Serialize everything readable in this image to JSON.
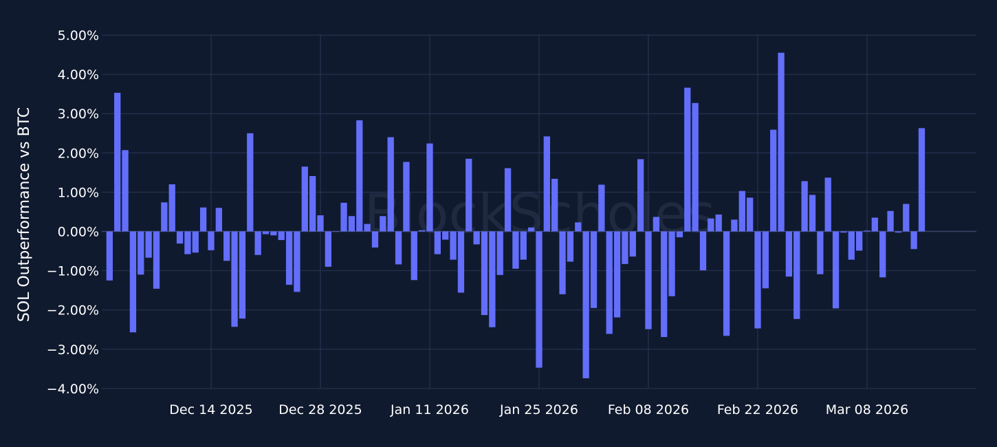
{
  "watermark": "BlockScholes",
  "chart_data": {
    "type": "bar",
    "ylabel": "SOL Outperformance vs BTC",
    "xlabel": "",
    "ylim": [
      -4.5,
      5.0
    ],
    "y_ticks": [
      -4,
      -3,
      -2,
      -1,
      0,
      1,
      2,
      3,
      4,
      5
    ],
    "y_tick_labels": [
      "−4.00%",
      "−3.00%",
      "−2.00%",
      "−1.00%",
      "0.00%",
      "1.00%",
      "2.00%",
      "3.00%",
      "4.00%",
      "5.00%"
    ],
    "x_ticks": [
      "2025-12-14",
      "2025-12-28",
      "2026-01-11",
      "2026-01-25",
      "2026-02-08",
      "2026-02-22",
      "2026-03-08"
    ],
    "x_tick_labels": [
      "Dec 14 2025",
      "Dec 28 2025",
      "Jan 11 2026",
      "Jan 25 2026",
      "Feb 08 2026",
      "Feb 22 2026",
      "Mar 08 2026"
    ],
    "x_start": "2025-12-01",
    "x_range": [
      "2025-11-30",
      "2026-03-22"
    ],
    "grid": true,
    "color": "#636efa",
    "values": [
      -1.25,
      3.53,
      2.07,
      -2.57,
      -1.1,
      -0.67,
      -1.46,
      0.74,
      1.2,
      -0.31,
      -0.58,
      -0.54,
      0.61,
      -0.48,
      0.6,
      -0.75,
      -2.43,
      -2.22,
      2.5,
      -0.6,
      -0.07,
      -0.1,
      -0.22,
      -1.36,
      -1.54,
      1.65,
      1.41,
      0.41,
      -0.9,
      0.0,
      0.73,
      0.39,
      2.83,
      0.19,
      -0.41,
      0.39,
      2.4,
      -0.84,
      1.77,
      -1.24,
      0.03,
      2.24,
      -0.58,
      -0.21,
      -0.72,
      -1.56,
      1.85,
      -0.33,
      -2.13,
      -2.44,
      -1.11,
      1.61,
      -0.95,
      -0.72,
      0.1,
      -3.47,
      2.42,
      1.34,
      -1.6,
      -0.77,
      0.23,
      -3.74,
      -1.95,
      1.19,
      -2.61,
      -2.19,
      -0.83,
      -0.64,
      1.84,
      -2.49,
      0.37,
      -2.69,
      -1.65,
      -0.15,
      3.66,
      3.27,
      -0.99,
      0.33,
      0.43,
      -2.66,
      0.3,
      1.03,
      0.86,
      -2.47,
      -1.45,
      2.59,
      4.55,
      -1.15,
      -2.23,
      1.28,
      0.93,
      -1.09,
      1.37,
      -1.96,
      -0.03,
      -0.72,
      -0.49,
      0.02,
      0.35,
      -1.17,
      0.52,
      -0.03,
      0.7,
      -0.45,
      2.63
    ]
  }
}
